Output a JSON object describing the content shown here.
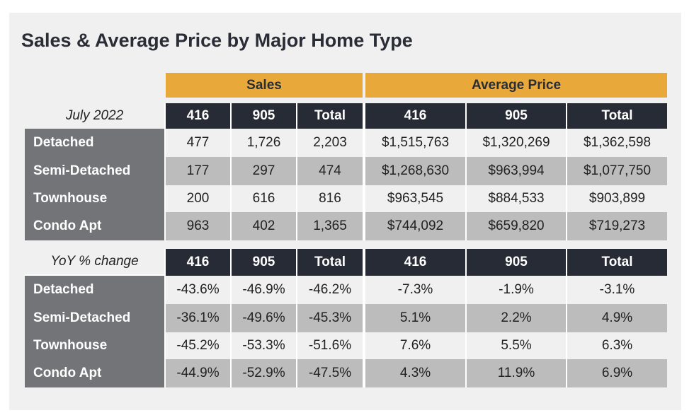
{
  "title": "Sales & Average Price by Major Home Type",
  "colors": {
    "gold": "#e8a93a",
    "dark_header": "#272b35",
    "label_column": "#737478",
    "row_light": "#f0f0f0",
    "row_gray": "#bcbcbc"
  },
  "chart_data": {
    "type": "table",
    "title": "Sales & Average Price by Major Home Type",
    "column_groups": [
      "Sales",
      "Average Price"
    ],
    "columns": [
      "416",
      "905",
      "Total",
      "416",
      "905",
      "Total"
    ],
    "sections": [
      {
        "corner": "July 2022",
        "rows": [
          {
            "label": "Detached",
            "values": [
              "477",
              "1,726",
              "2,203",
              "$1,515,763",
              "$1,320,269",
              "$1,362,598"
            ]
          },
          {
            "label": "Semi-Detached",
            "values": [
              "177",
              "297",
              "474",
              "$1,268,630",
              "$963,994",
              "$1,077,750"
            ]
          },
          {
            "label": "Townhouse",
            "values": [
              "200",
              "616",
              "816",
              "$963,545",
              "$884,533",
              "$903,899"
            ]
          },
          {
            "label": "Condo Apt",
            "values": [
              "963",
              "402",
              "1,365",
              "$744,092",
              "$659,820",
              "$719,273"
            ]
          }
        ]
      },
      {
        "corner": "YoY % change",
        "rows": [
          {
            "label": "Detached",
            "values": [
              "-43.6%",
              "-46.9%",
              "-46.2%",
              "-7.3%",
              "-1.9%",
              "-3.1%"
            ]
          },
          {
            "label": "Semi-Detached",
            "values": [
              "-36.1%",
              "-49.6%",
              "-45.3%",
              "5.1%",
              "2.2%",
              "4.9%"
            ]
          },
          {
            "label": "Townhouse",
            "values": [
              "-45.2%",
              "-53.3%",
              "-51.6%",
              "7.6%",
              "5.5%",
              "6.3%"
            ]
          },
          {
            "label": "Condo Apt",
            "values": [
              "-44.9%",
              "-52.9%",
              "-47.5%",
              "4.3%",
              "11.9%",
              "6.9%"
            ]
          }
        ]
      }
    ]
  }
}
